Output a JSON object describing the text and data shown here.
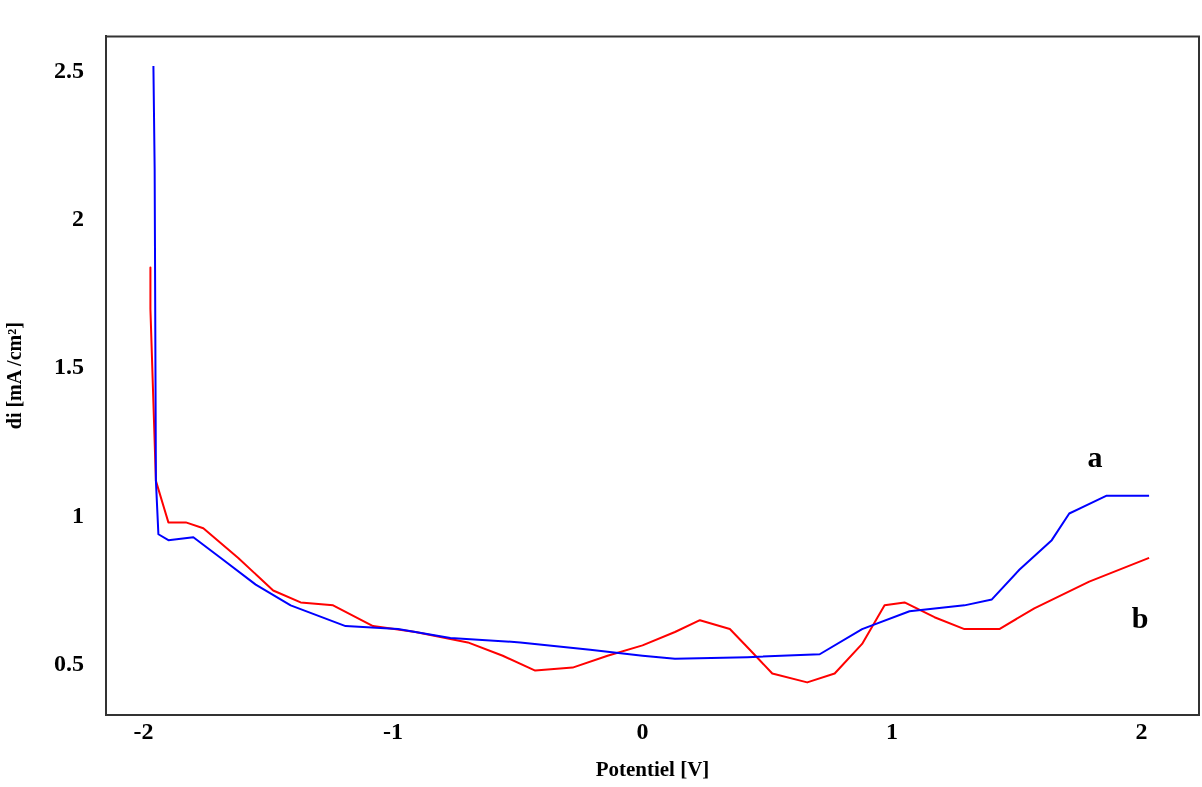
{
  "chart_data": {
    "type": "line",
    "xlabel": "Potentiel [V]",
    "ylabel": "di [mA /cm²]",
    "xlim": [
      -2.15,
      2.23
    ],
    "ylim": [
      0.33,
      2.62
    ],
    "xticks": [
      -2,
      -1,
      0,
      1,
      2
    ],
    "yticks": [
      0.5,
      1,
      1.5,
      2,
      2.5
    ],
    "grid": false,
    "legend": false,
    "marker": "none",
    "line_style": "solid",
    "series": [
      {
        "name": "a",
        "color": "#0000ff",
        "x": [
          -1.96,
          -1.955,
          -1.95,
          -1.94,
          -1.9,
          -1.8,
          -1.69,
          -1.55,
          -1.41,
          -1.19,
          -0.98,
          -0.77,
          -0.49,
          -0.21,
          0.0,
          0.13,
          0.42,
          0.71,
          0.88,
          1.07,
          1.29,
          1.4,
          1.51,
          1.64,
          1.71,
          1.86,
          2.03
        ],
        "values": [
          2.52,
          2.17,
          1.12,
          0.94,
          0.92,
          0.93,
          0.86,
          0.77,
          0.7,
          0.63,
          0.62,
          0.59,
          0.575,
          0.55,
          0.53,
          0.52,
          0.525,
          0.535,
          0.62,
          0.68,
          0.7,
          0.72,
          0.82,
          0.92,
          1.01,
          1.07,
          1.07
        ]
      },
      {
        "name": "b",
        "color": "#ff0000",
        "x": [
          -1.972,
          -1.972,
          -1.95,
          -1.9,
          -1.83,
          -1.76,
          -1.62,
          -1.48,
          -1.37,
          -1.24,
          -1.08,
          -0.91,
          -0.7,
          -0.56,
          -0.43,
          -0.28,
          -0.14,
          0.0,
          0.13,
          0.23,
          0.35,
          0.43,
          0.52,
          0.66,
          0.77,
          0.88,
          0.97,
          1.05,
          1.17,
          1.29,
          1.43,
          1.57,
          1.79,
          2.03
        ],
        "values": [
          1.84,
          1.7,
          1.12,
          0.98,
          0.98,
          0.96,
          0.86,
          0.75,
          0.71,
          0.7,
          0.63,
          0.61,
          0.575,
          0.53,
          0.48,
          0.49,
          0.53,
          0.565,
          0.61,
          0.65,
          0.62,
          0.55,
          0.47,
          0.44,
          0.47,
          0.57,
          0.7,
          0.71,
          0.66,
          0.62,
          0.62,
          0.69,
          0.78,
          0.86
        ]
      }
    ]
  }
}
